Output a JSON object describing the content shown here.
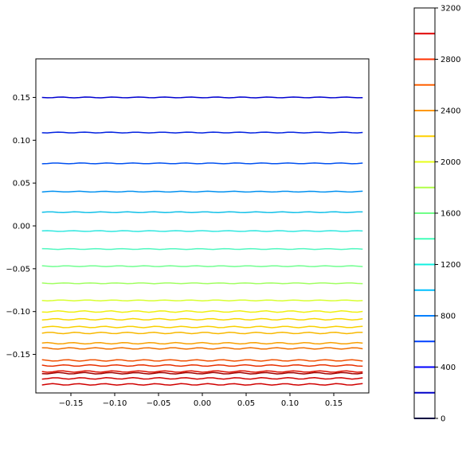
{
  "chart_data": {
    "type": "contour",
    "title": "",
    "xlabel": "",
    "ylabel": "",
    "xlim": [
      -0.19,
      0.19
    ],
    "ylim": [
      -0.195,
      0.195
    ],
    "xticks": [
      -0.15,
      -0.1,
      -0.05,
      0.0,
      0.05,
      0.1,
      0.15
    ],
    "xtick_labels": [
      "−0.15",
      "−0.10",
      "−0.05",
      "0.00",
      "0.05",
      "0.10",
      "0.15"
    ],
    "yticks": [
      0.15,
      0.1,
      0.05,
      0.0,
      -0.05,
      -0.1,
      -0.15
    ],
    "ytick_labels": [
      "0.15",
      "0.10",
      "0.05",
      "0.00",
      "−0.05",
      "−0.10",
      "−0.15"
    ],
    "line_x_range": [
      -0.183,
      0.183
    ],
    "contour_lines": [
      {
        "y": 0.15,
        "color": "#0000d0"
      },
      {
        "y": 0.109,
        "color": "#0020e0"
      },
      {
        "y": 0.073,
        "color": "#0050f0"
      },
      {
        "y": 0.04,
        "color": "#0090f0"
      },
      {
        "y": 0.016,
        "color": "#10c0e8"
      },
      {
        "y": -0.006,
        "color": "#30e8e0"
      },
      {
        "y": -0.027,
        "color": "#50f8c0"
      },
      {
        "y": -0.047,
        "color": "#70ff90"
      },
      {
        "y": -0.067,
        "color": "#a0ff60"
      },
      {
        "y": -0.087,
        "color": "#d8ff30"
      },
      {
        "y": -0.1,
        "color": "#f0f010"
      },
      {
        "y": -0.109,
        "color": "#f8d800"
      },
      {
        "y": -0.118,
        "color": "#f8d000"
      },
      {
        "y": -0.125,
        "color": "#f8b800"
      },
      {
        "y": -0.137,
        "color": "#f8a000"
      },
      {
        "y": -0.143,
        "color": "#f07000"
      },
      {
        "y": -0.157,
        "color": "#f05000"
      },
      {
        "y": -0.163,
        "color": "#e83000"
      },
      {
        "y": -0.17,
        "color": "#e01000"
      },
      {
        "y": -0.172,
        "color": "#a00000"
      },
      {
        "y": -0.178,
        "color": "#d00000"
      },
      {
        "y": -0.185,
        "color": "#d00000"
      }
    ],
    "colorbar": {
      "range": [
        0,
        3200
      ],
      "ticks": [
        0,
        400,
        800,
        1200,
        1600,
        2000,
        2400,
        2800,
        3200
      ],
      "tick_labels": [
        "0",
        "400",
        "800",
        "1200",
        "1600",
        "2000",
        "2400",
        "2800",
        "3200"
      ],
      "levels": [
        {
          "value": 0,
          "color": "#000080"
        },
        {
          "value": 200,
          "color": "#0000c8"
        },
        {
          "value": 400,
          "color": "#0000ff"
        },
        {
          "value": 600,
          "color": "#0040ff"
        },
        {
          "value": 800,
          "color": "#0080ff"
        },
        {
          "value": 1000,
          "color": "#00c0ff"
        },
        {
          "value": 1200,
          "color": "#10f0e0"
        },
        {
          "value": 1400,
          "color": "#40ffb8"
        },
        {
          "value": 1600,
          "color": "#70ff88"
        },
        {
          "value": 1800,
          "color": "#b0ff48"
        },
        {
          "value": 2000,
          "color": "#e8ff18"
        },
        {
          "value": 2200,
          "color": "#ffd000"
        },
        {
          "value": 2400,
          "color": "#ff9800"
        },
        {
          "value": 2600,
          "color": "#ff6000"
        },
        {
          "value": 2800,
          "color": "#ff3000"
        },
        {
          "value": 3000,
          "color": "#e00000"
        }
      ]
    }
  }
}
